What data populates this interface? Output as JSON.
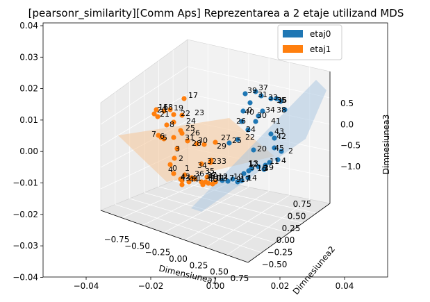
{
  "chart_data": {
    "type": "scatter",
    "title": "[pearsonr_similarity][Comm Aps] Reprezentarea a 2 etaje utilizand MDS",
    "xlabel": "Dimensiunea1",
    "ylabel": "Dimnesiunea2",
    "zlabel": "Dimnesiunea3",
    "background_2d_axis": {
      "xticks": [
        "−0.04",
        "−0.02",
        "0.00",
        "0.02",
        "0.04"
      ],
      "yticks": [
        "0.04",
        "0.03",
        "0.02",
        "0.01",
        "0.00",
        "−0.01",
        "−0.02",
        "−0.03",
        "−0.04"
      ]
    },
    "x_ticks": [
      "−0.75",
      "−0.50",
      "−0.25",
      "0.00",
      "0.25",
      "0.50",
      "0.75"
    ],
    "y_ticks": [
      "−0.50",
      "−0.25",
      "0.00",
      "0.25",
      "0.50",
      "0.75"
    ],
    "z_ticks": [
      "0.5",
      "0.0",
      "−0.5",
      "−1.0"
    ],
    "legend": {
      "placement": "top-right",
      "entries": [
        {
          "label": "etaj0",
          "color": "#1f77b4"
        },
        {
          "label": "etaj1",
          "color": "#ff7f0e"
        }
      ]
    },
    "series": [
      {
        "name": "etaj0",
        "color": "#1f77b4",
        "labels": [
          "39",
          "37",
          "31",
          "33",
          "35",
          "36",
          "38",
          "0",
          "34",
          "40",
          "41",
          "26",
          "30",
          "24",
          "43",
          "22",
          "42",
          "25",
          "20",
          "45",
          "2",
          "4",
          "11",
          "19",
          "13",
          "16",
          "3",
          "5",
          "12",
          "14",
          "9",
          "17",
          "7",
          "10",
          "1"
        ]
      },
      {
        "name": "etaj1",
        "color": "#ff7f0e",
        "labels": [
          "17",
          "16",
          "18",
          "19",
          "22",
          "23",
          "20",
          "24",
          "21",
          "25",
          "26",
          "8",
          "7",
          "6",
          "5",
          "31",
          "30",
          "28",
          "27",
          "29",
          "3",
          "2",
          "4",
          "34",
          "32",
          "33",
          "0",
          "1",
          "35",
          "36",
          "37",
          "38",
          "40",
          "41",
          "42",
          "43",
          "44",
          "45",
          "10",
          "11",
          "12",
          "13"
        ]
      }
    ]
  }
}
